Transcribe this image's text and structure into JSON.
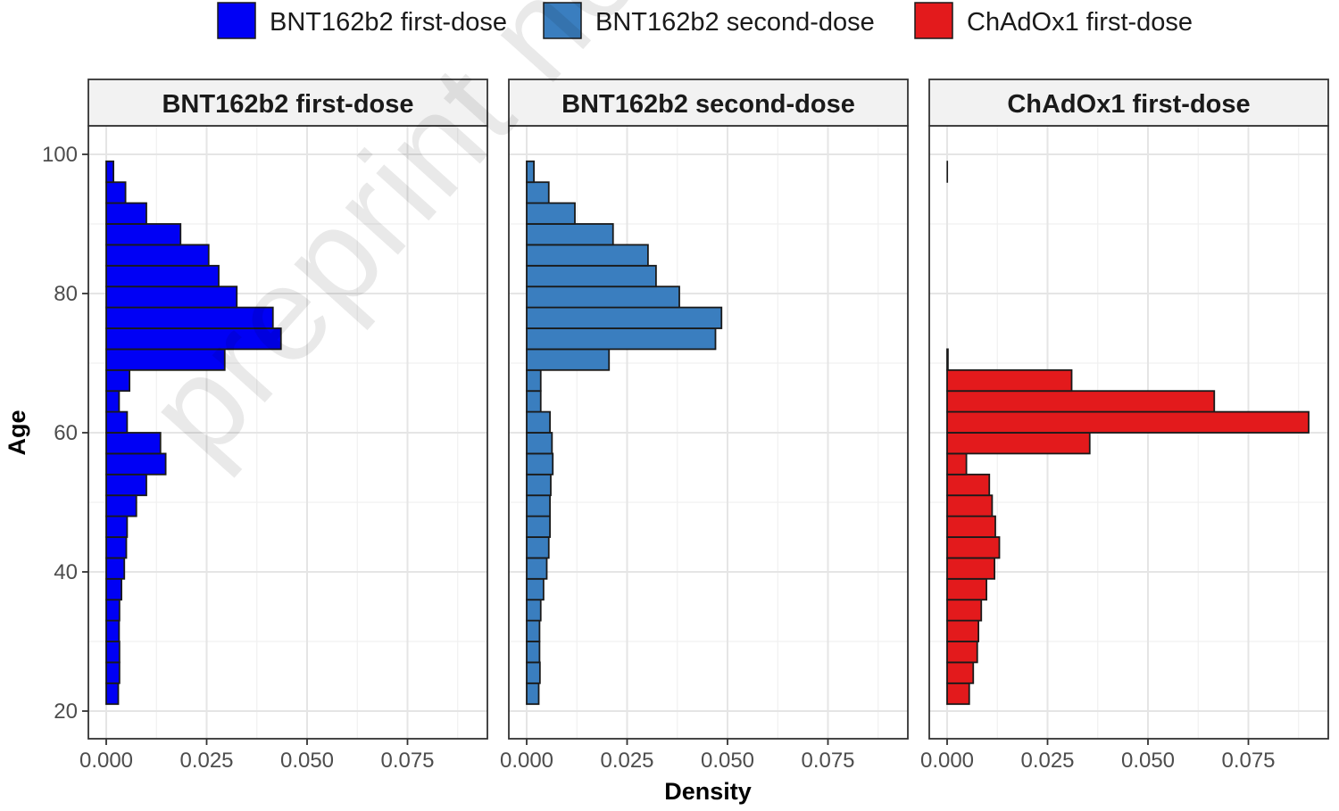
{
  "chart_data": {
    "type": "bar",
    "orientation": "horizontal",
    "xlabel": "Density",
    "ylabel": "Age",
    "xlim": [
      0.0,
      0.1
    ],
    "ylim": [
      18.5,
      104.5
    ],
    "x_ticks": [
      "0.000",
      "0.025",
      "0.050",
      "0.075"
    ],
    "x_tick_values": [
      0.0,
      0.025,
      0.05,
      0.075
    ],
    "y_ticks": [
      "20",
      "40",
      "60",
      "80",
      "100"
    ],
    "y_tick_values": [
      20,
      40,
      60,
      80,
      100
    ],
    "grid": true,
    "legend_position": "top",
    "bin_width": 3,
    "bin_centers": [
      22.5,
      25.5,
      28.5,
      31.5,
      34.5,
      37.5,
      40.5,
      43.5,
      46.5,
      49.5,
      52.5,
      55.5,
      58.5,
      61.5,
      64.5,
      67.5,
      70.5,
      73.5,
      76.5,
      79.5,
      82.5,
      85.5,
      88.5,
      91.5,
      94.5,
      97.5
    ],
    "series": [
      {
        "name": "BNT162b2 first-dose",
        "color": "#0000f5",
        "values": [
          0.003,
          0.0033,
          0.0033,
          0.0032,
          0.0033,
          0.0038,
          0.0045,
          0.005,
          0.0052,
          0.0075,
          0.01,
          0.0148,
          0.0135,
          0.0052,
          0.0032,
          0.0058,
          0.0295,
          0.0435,
          0.0415,
          0.0325,
          0.028,
          0.0255,
          0.0185,
          0.01,
          0.0048,
          0.0018
        ]
      },
      {
        "name": "BNT162b2 second-dose",
        "color": "#3a7ebf",
        "values": [
          0.003,
          0.0033,
          0.0032,
          0.0032,
          0.0035,
          0.0042,
          0.005,
          0.0055,
          0.0058,
          0.0058,
          0.006,
          0.0065,
          0.0063,
          0.0058,
          0.0035,
          0.0035,
          0.0205,
          0.047,
          0.0485,
          0.038,
          0.0322,
          0.0302,
          0.0215,
          0.012,
          0.0055,
          0.0018
        ]
      },
      {
        "name": "ChAdOx1 first-dose",
        "color": "#e31a1c",
        "values": [
          0.0055,
          0.0065,
          0.0075,
          0.0078,
          0.0085,
          0.0098,
          0.0118,
          0.013,
          0.012,
          0.0112,
          0.0105,
          0.0048,
          0.0355,
          0.09,
          0.0665,
          0.031,
          0.0002,
          0.0,
          0.0,
          0.0,
          0.0,
          0.0,
          0.0,
          0.0,
          0.0,
          0.0001
        ]
      }
    ]
  },
  "watermark": "preprint not peer reviewed"
}
